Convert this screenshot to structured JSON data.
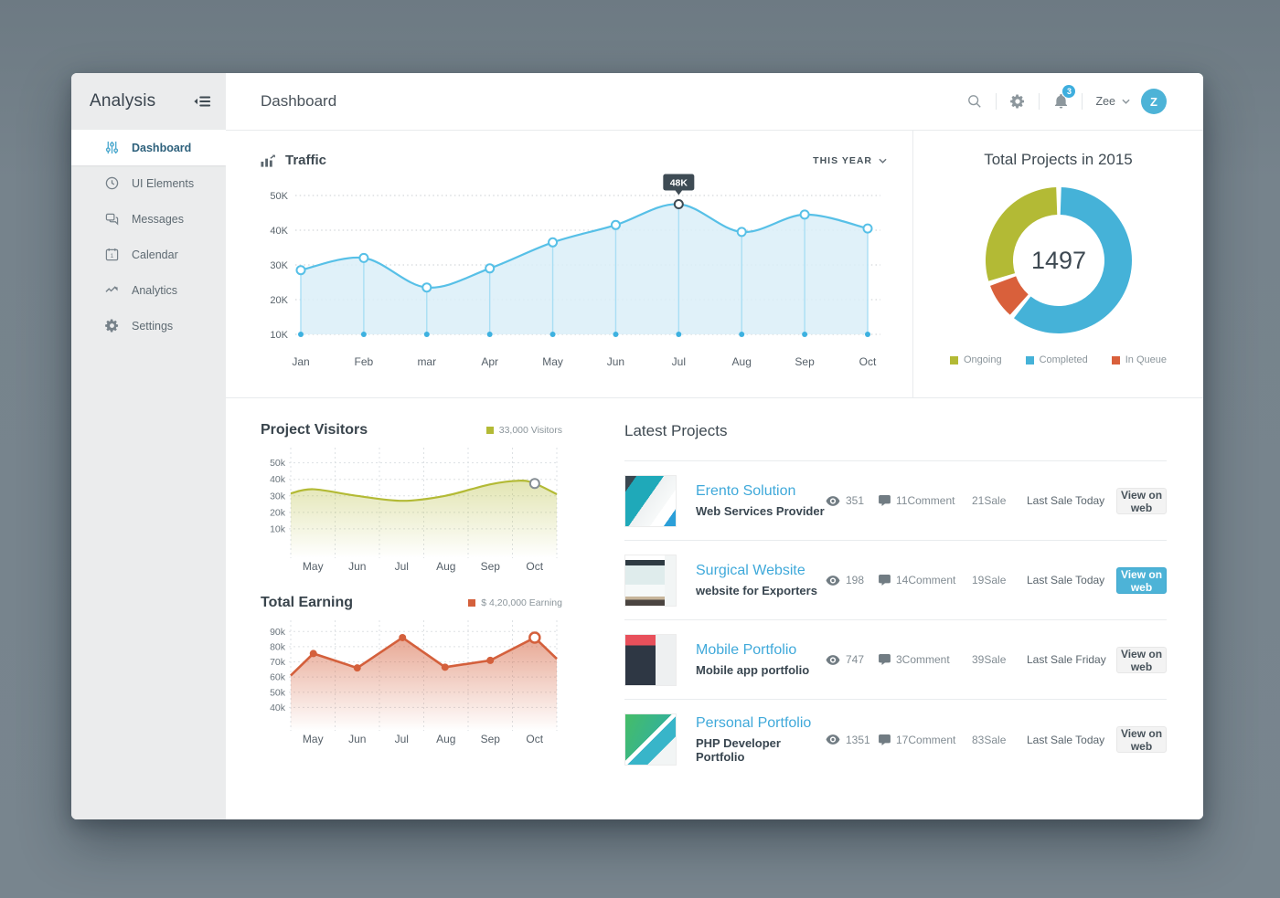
{
  "app": {
    "brand": "Analysis",
    "page_title": "Dashboard"
  },
  "sidebar": {
    "active_index": 0,
    "items": [
      {
        "label": "Dashboard",
        "icon": "sliders-icon"
      },
      {
        "label": "UI Elements",
        "icon": "clock-icon"
      },
      {
        "label": "Messages",
        "icon": "chat-icon"
      },
      {
        "label": "Calendar",
        "icon": "calendar-icon"
      },
      {
        "label": "Analytics",
        "icon": "pulse-icon"
      },
      {
        "label": "Settings",
        "icon": "gear-icon"
      }
    ]
  },
  "header": {
    "notifications": "3",
    "user_name": "Zee",
    "avatar_initial": "Z"
  },
  "traffic": {
    "title": "Traffic",
    "range_label": "THIS YEAR"
  },
  "total_projects": {
    "title": "Total Projects in 2015",
    "total": "1497"
  },
  "project_visitors": {
    "title": "Project Visitors",
    "legend": "33,000 Visitors"
  },
  "total_earning": {
    "title": "Total Earning",
    "legend": "$ 4,20,000 Earning"
  },
  "latest_projects": {
    "title": "Latest Projects",
    "view_button_label": "View on web",
    "rows": [
      {
        "name": "Erento Solution",
        "desc": "Web Services Provider",
        "views": "351",
        "comments": "11Comment",
        "sale": "21Sale",
        "last_sale": "Last Sale Today",
        "button": "View on web",
        "button_style": "default",
        "thumb": "erento"
      },
      {
        "name": "Surgical Website",
        "desc": "website for Exporters",
        "views": "198",
        "comments": "14Comment",
        "sale": "19Sale",
        "last_sale": "Last Sale Today",
        "button": "View on web",
        "button_style": "primary",
        "thumb": "surgical"
      },
      {
        "name": "Mobile Portfolio",
        "desc": "Mobile app portfolio",
        "views": "747",
        "comments": "3Comment",
        "sale": "39Sale",
        "last_sale": "Last Sale Friday",
        "button": "View on web",
        "button_style": "default",
        "thumb": "mobile"
      },
      {
        "name": "Personal Portfolio",
        "desc": "PHP Developer Portfolio",
        "views": "1351",
        "comments": "17Comment",
        "sale": "83Sale",
        "last_sale": "Last Sale Today",
        "button": "View on web",
        "button_style": "default",
        "thumb": "personal"
      }
    ]
  },
  "colors": {
    "accent_blue": "#4db3d7",
    "link_blue": "#3fa9da",
    "olive": "#b3ba35",
    "orange": "#d4603c",
    "donut_blue": "#45b2d8",
    "tooltip_bg": "#3e4b54"
  },
  "chart_data": [
    {
      "id": "traffic",
      "type": "area",
      "title": "Traffic",
      "range": "THIS YEAR",
      "x": [
        "Jan",
        "Feb",
        "mar",
        "Apr",
        "May",
        "Jun",
        "Jul",
        "Aug",
        "Sep",
        "Oct"
      ],
      "values": [
        28.5,
        32,
        23.5,
        29,
        36.5,
        41.5,
        47.5,
        39.5,
        44.5,
        40.5
      ],
      "unit": "K",
      "ylim": [
        10,
        50
      ],
      "yticks": [
        10,
        20,
        30,
        40,
        50
      ],
      "highlight_index": 6,
      "tooltip": "48K",
      "grid": "dotted-horizontal",
      "legend_position": "none",
      "colors": {
        "line": "#57c0e7",
        "fill": "#daeef8",
        "stem": "#a9def4",
        "base_dot": "#3db1e0",
        "tooltip_bg": "#3e4b54"
      }
    },
    {
      "id": "total_projects",
      "type": "pie",
      "title": "Total Projects in 2015",
      "center_value": "1497",
      "slices": [
        {
          "label": "Ongoing",
          "pct": 30,
          "color": "#b3ba35"
        },
        {
          "label": "Completed",
          "pct": 62,
          "color": "#45b2d8"
        },
        {
          "label": "In Queue",
          "pct": 8,
          "color": "#d9603b"
        }
      ],
      "draw_order": [
        1,
        2,
        0
      ],
      "legend_position": "bottom"
    },
    {
      "id": "visitors",
      "type": "area",
      "title": "Project Visitors",
      "legend": "33,000 Visitors",
      "x": [
        "May",
        "Jun",
        "Jul",
        "Aug",
        "Sep",
        "Oct"
      ],
      "points": [
        [
          0,
          31.5
        ],
        [
          0.085,
          34
        ],
        [
          0.25,
          30
        ],
        [
          0.42,
          27
        ],
        [
          0.58,
          30
        ],
        [
          0.75,
          37
        ],
        [
          0.86,
          39.2
        ],
        [
          0.917,
          37.5
        ],
        [
          1,
          31
        ]
      ],
      "marker": {
        "fx": 0.917,
        "v": 37.5
      },
      "unit": "k",
      "ylim": [
        0,
        57
      ],
      "yticks": [
        10,
        20,
        30,
        40,
        50
      ],
      "grid": "dashed-both",
      "colors": {
        "line": "#b3ba35",
        "marker_stroke": "#868e94"
      }
    },
    {
      "id": "earning",
      "type": "line",
      "title": "Total Earning",
      "legend": "$ 4,20,000 Earning",
      "x": [
        "May",
        "Jun",
        "Jul",
        "Aug",
        "Sep",
        "Oct"
      ],
      "points": [
        [
          0,
          61
        ],
        [
          0.085,
          75.5
        ],
        [
          0.25,
          66
        ],
        [
          0.42,
          86
        ],
        [
          0.58,
          66.5
        ],
        [
          0.75,
          71
        ],
        [
          0.917,
          86
        ],
        [
          1,
          72
        ]
      ],
      "dot_indices": [
        1,
        2,
        3,
        4,
        5
      ],
      "open_marker_index": 6,
      "unit": "k",
      "ylim": [
        33,
        95
      ],
      "yticks": [
        40,
        50,
        60,
        70,
        80,
        90
      ],
      "grid": "dashed-both",
      "colors": {
        "line": "#d4603c"
      }
    }
  ]
}
